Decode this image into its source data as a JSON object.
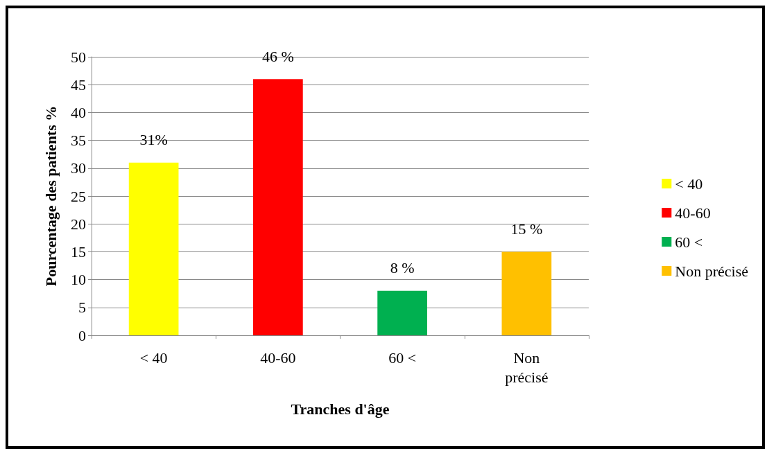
{
  "chart_data": {
    "type": "bar",
    "xlabel": "Tranches d'âge",
    "ylabel": "Pourcentage des patients %",
    "categories": [
      "< 40",
      "40-60",
      "60 <",
      "Non\nprécisé"
    ],
    "series": [
      {
        "name": "< 40",
        "color": "#ffff00",
        "values": [
          31,
          null,
          null,
          null
        ],
        "value_labels": [
          "31%",
          null,
          null,
          null
        ]
      },
      {
        "name": "40-60",
        "color": "#ff0000",
        "values": [
          null,
          46,
          null,
          null
        ],
        "value_labels": [
          null,
          "46 %",
          null,
          null
        ]
      },
      {
        "name": "60 <",
        "color": "#00b050",
        "values": [
          null,
          null,
          8,
          null
        ],
        "value_labels": [
          null,
          null,
          "8 %",
          null
        ]
      },
      {
        "name": "Non précisé",
        "color": "#ffc000",
        "values": [
          null,
          null,
          null,
          15
        ],
        "value_labels": [
          null,
          null,
          null,
          "15 %"
        ]
      }
    ],
    "stacked": true,
    "ylim": [
      0,
      50
    ],
    "yticks": [
      0,
      5,
      10,
      15,
      20,
      25,
      30,
      35,
      40,
      45,
      50
    ],
    "grid": "y",
    "legend": "right"
  }
}
